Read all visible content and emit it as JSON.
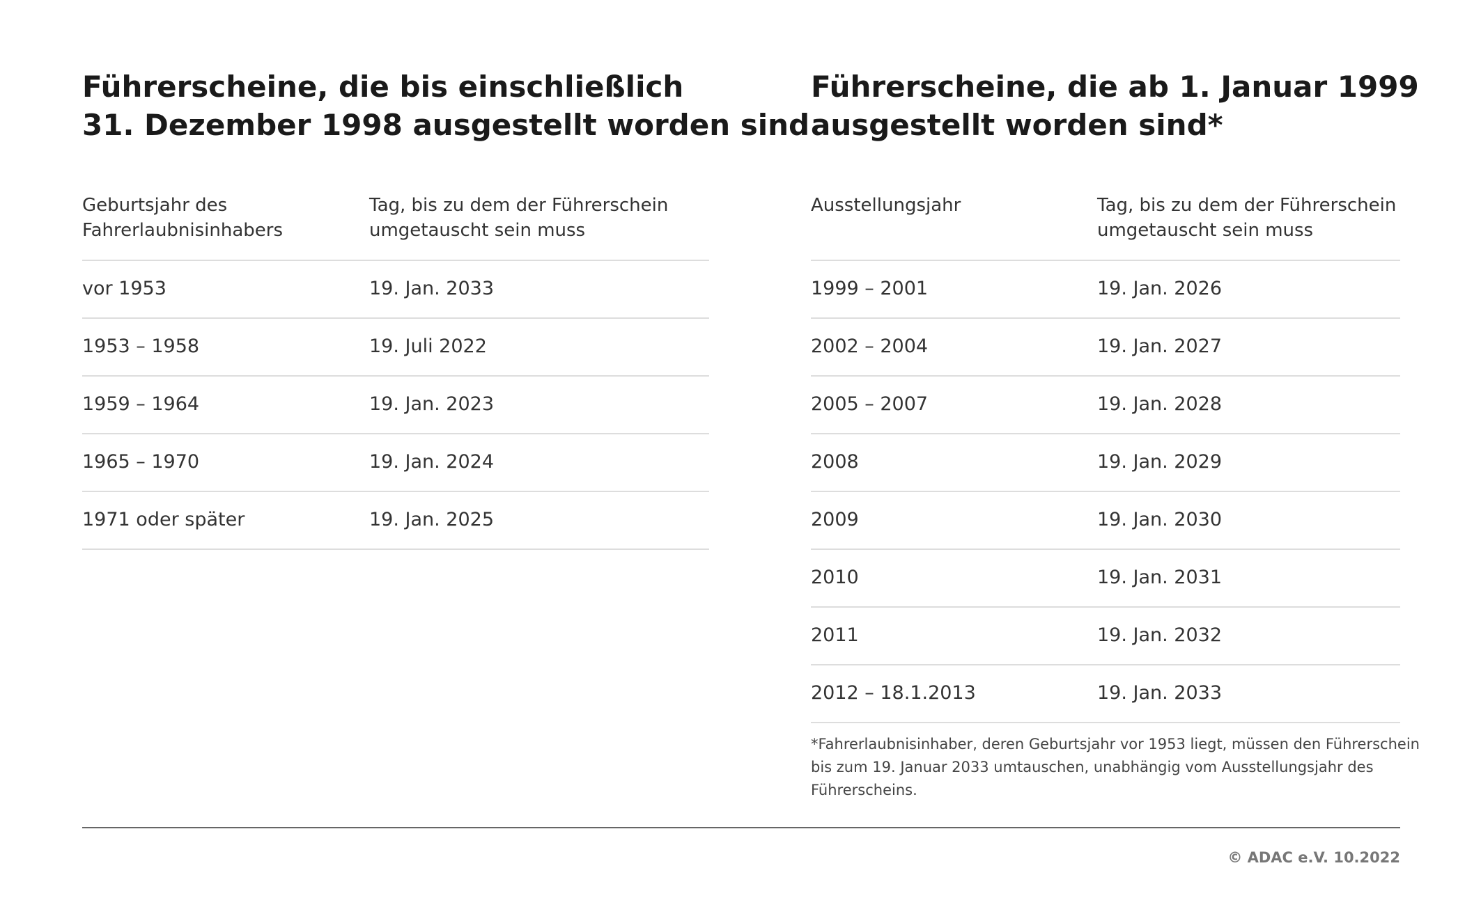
{
  "tables": [
    {
      "title": [
        "Führerscheine, die bis einschließlich",
        "31. Dezember 1998 ausgestellt worden sind"
      ],
      "headers": [
        [
          "Geburtsjahr des",
          "Fahrerlaubnisinhabers"
        ],
        [
          "Tag, bis zu dem der Führerschein",
          "umgetauscht sein muss"
        ]
      ],
      "rows": [
        [
          "vor 1953",
          "19. Jan. 2033"
        ],
        [
          "1953 – 1958",
          "19. Juli 2022"
        ],
        [
          "1959 – 1964",
          "19. Jan. 2023"
        ],
        [
          "1965 – 1970",
          "19. Jan. 2024"
        ],
        [
          "1971 oder später",
          "19. Jan. 2025"
        ]
      ]
    },
    {
      "title": [
        "Führerscheine, die ab 1. Januar 1999",
        "ausgestellt worden sind*"
      ],
      "headers": [
        [
          "Ausstellungsjahr"
        ],
        [
          "Tag, bis zu dem der Führerschein",
          "umgetauscht sein muss"
        ]
      ],
      "rows": [
        [
          "1999 – 2001",
          "19. Jan. 2026"
        ],
        [
          "2002 – 2004",
          "19. Jan. 2027"
        ],
        [
          "2005 – 2007",
          "19. Jan. 2028"
        ],
        [
          "2008",
          "19. Jan. 2029"
        ],
        [
          "2009",
          "19. Jan. 2030"
        ],
        [
          "2010",
          "19. Jan. 2031"
        ],
        [
          "2011",
          "19. Jan. 2032"
        ],
        [
          "2012 – 18.1.2013",
          "19. Jan. 2033"
        ]
      ],
      "footnote": [
        "*Fahrerlaubnisinhaber, deren Geburtsjahr vor 1953 liegt, müssen den Führerschein",
        "bis zum 19. Januar 2033 umtauschen, unabhängig vom Ausstellungsjahr des",
        "Führerscheins."
      ]
    }
  ],
  "copyright": "© ADAC e.V. 10.2022"
}
